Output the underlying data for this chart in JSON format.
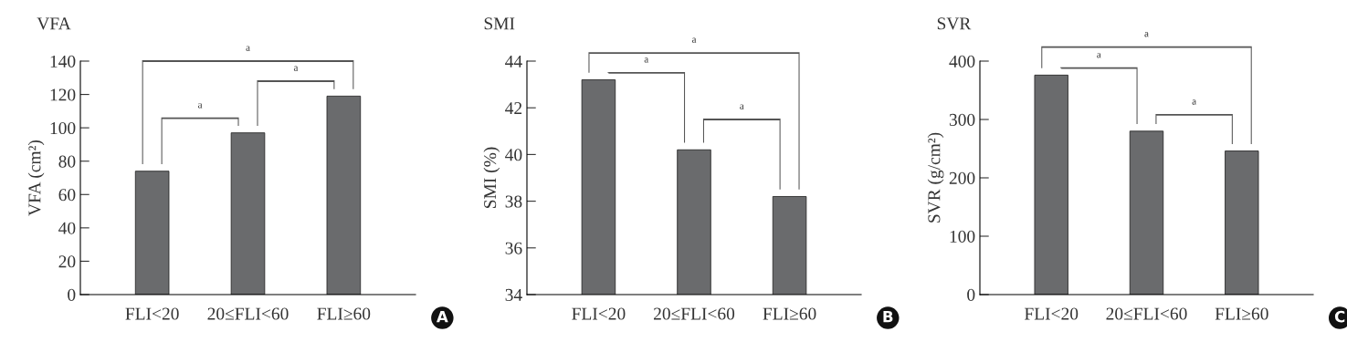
{
  "chart_data": [
    {
      "type": "bar",
      "title": "VFA",
      "ylabel": "VFA (cm²)",
      "categories": [
        "FLI<20",
        "20≤FLI<60",
        "FLI≥60"
      ],
      "values": [
        74,
        97,
        119
      ],
      "color": "#6a6b6d",
      "ylim": [
        0,
        140
      ],
      "yticks": [
        0,
        20,
        40,
        60,
        80,
        100,
        120,
        140
      ],
      "grid": false,
      "annotations": [
        "a",
        "a",
        "a",
        "A"
      ]
    },
    {
      "type": "bar",
      "title": "SMI",
      "ylabel": "SMI (%)",
      "categories": [
        "FLI<20",
        "20≤FLI<60",
        "FLI≥60"
      ],
      "values": [
        43.2,
        40.2,
        38.2
      ],
      "color": "#6a6b6d",
      "ylim": [
        34,
        44
      ],
      "yticks": [
        34,
        36,
        38,
        40,
        42,
        44
      ],
      "grid": false,
      "annotations": [
        "a",
        "a",
        "a",
        "B"
      ]
    },
    {
      "type": "bar",
      "title": "SVR",
      "ylabel": "SVR (g/cm²)",
      "categories": [
        "FLI<20",
        "20≤FLI<60",
        "FLI≥60"
      ],
      "values": [
        376,
        280,
        246
      ],
      "color": "#6a6b6d",
      "ylim": [
        0,
        400
      ],
      "yticks": [
        0,
        100,
        200,
        300,
        400
      ],
      "grid": false,
      "annotations": [
        "a",
        "a",
        "a",
        "C"
      ]
    }
  ]
}
